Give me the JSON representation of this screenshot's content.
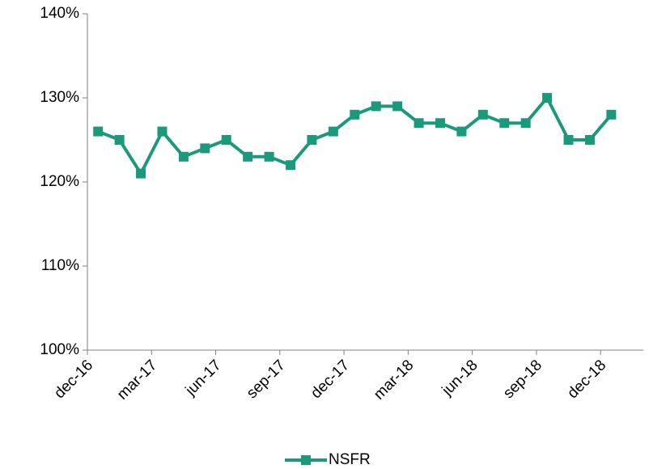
{
  "chart_data": {
    "type": "line",
    "categories": [
      "dec-16",
      null,
      null,
      "mar-17",
      null,
      null,
      "jun-17",
      null,
      null,
      "sep-17",
      null,
      null,
      "dec-17",
      null,
      null,
      "mar-18",
      null,
      null,
      "jun-18",
      null,
      null,
      "sep-18",
      null,
      null,
      "dec-18",
      null
    ],
    "series": [
      {
        "name": "NSFR",
        "color": "#1b9a7b",
        "values": [
          126,
          125,
          121,
          126,
          123,
          124,
          125,
          123,
          123,
          122,
          125,
          126,
          128,
          129,
          129,
          127,
          127,
          126,
          128,
          127,
          127,
          130,
          125,
          125,
          128,
          null
        ]
      }
    ],
    "ylim": [
      100,
      140
    ],
    "yticks": [
      {
        "value": 100,
        "label": "100%"
      },
      {
        "value": 110,
        "label": "110%"
      },
      {
        "value": 120,
        "label": "120%"
      },
      {
        "value": 130,
        "label": "130%"
      },
      {
        "value": 140,
        "label": "140%"
      }
    ],
    "grid": false,
    "legend": "bottom"
  }
}
